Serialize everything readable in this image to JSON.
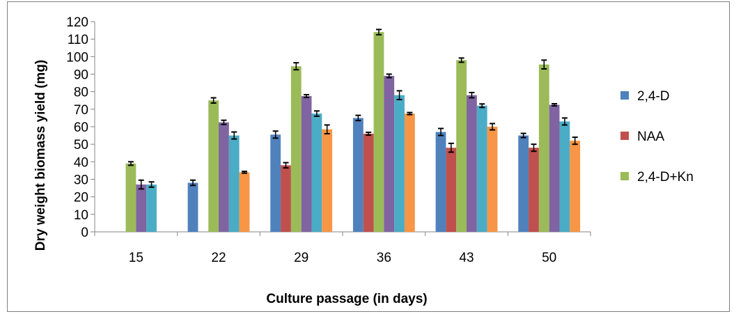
{
  "chart_data": {
    "type": "bar",
    "title": "",
    "xlabel": "Culture passage  (in days)",
    "ylabel": "Dry weight biomass yield (mg)",
    "ylim": [
      0,
      120
    ],
    "yticks": [
      0,
      10,
      20,
      30,
      40,
      50,
      60,
      70,
      80,
      90,
      100,
      110,
      120
    ],
    "grid": false,
    "legend_position": "right",
    "categories": [
      "15",
      "22",
      "29",
      "36",
      "43",
      "50"
    ],
    "series": [
      {
        "name": "2,4-D",
        "color": "#4f81bd",
        "values": [
          null,
          28,
          55.5,
          65,
          57,
          55
        ],
        "errors": [
          null,
          1.5,
          2,
          1.5,
          2,
          1.2
        ]
      },
      {
        "name": "NAA",
        "color": "#c0504d",
        "values": [
          null,
          null,
          38,
          56,
          48,
          48
        ],
        "errors": [
          null,
          null,
          1.5,
          0.8,
          2.5,
          2
        ]
      },
      {
        "name": "2,4-D+Kn",
        "color": "#9bbb59",
        "values": [
          39,
          75,
          94.5,
          114,
          98,
          95.5
        ],
        "errors": [
          1,
          1.5,
          2,
          1.5,
          1.2,
          2.5
        ]
      },
      {
        "name": "",
        "color": "#8064a2",
        "values": [
          27,
          62.5,
          77.5,
          89,
          78,
          72.5
        ],
        "errors": [
          2.5,
          1.2,
          0.8,
          1,
          1.5,
          0.6
        ]
      },
      {
        "name": "",
        "color": "#4bacc6",
        "values": [
          27,
          55,
          67.5,
          78,
          72,
          63
        ],
        "errors": [
          1.5,
          2,
          1.5,
          2.5,
          1,
          2
        ]
      },
      {
        "name": "",
        "color": "#f79646",
        "values": [
          null,
          34,
          58.5,
          67.5,
          60,
          52
        ],
        "errors": [
          null,
          0.5,
          2.5,
          0.6,
          1.8,
          2
        ]
      }
    ]
  }
}
